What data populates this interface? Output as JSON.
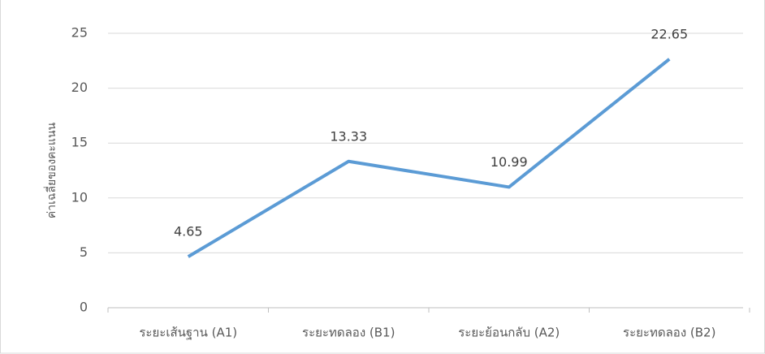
{
  "chart_data": {
    "type": "line",
    "y_label": "ค่าเฉลี่ยของคะแนน",
    "categories": [
      "ระยะเส้นฐาน (A1)",
      "ระยะทดลอง (B1)",
      "ระยะย้อนกลับ (A2)",
      "ระยะทดลอง (B2)"
    ],
    "values": [
      4.65,
      13.33,
      10.99,
      22.65
    ],
    "color": "#5b9bd5",
    "ylim": [
      0,
      25
    ],
    "yticks": [
      0,
      5,
      10,
      15,
      20,
      25
    ],
    "grid": true,
    "data_labels": true
  }
}
